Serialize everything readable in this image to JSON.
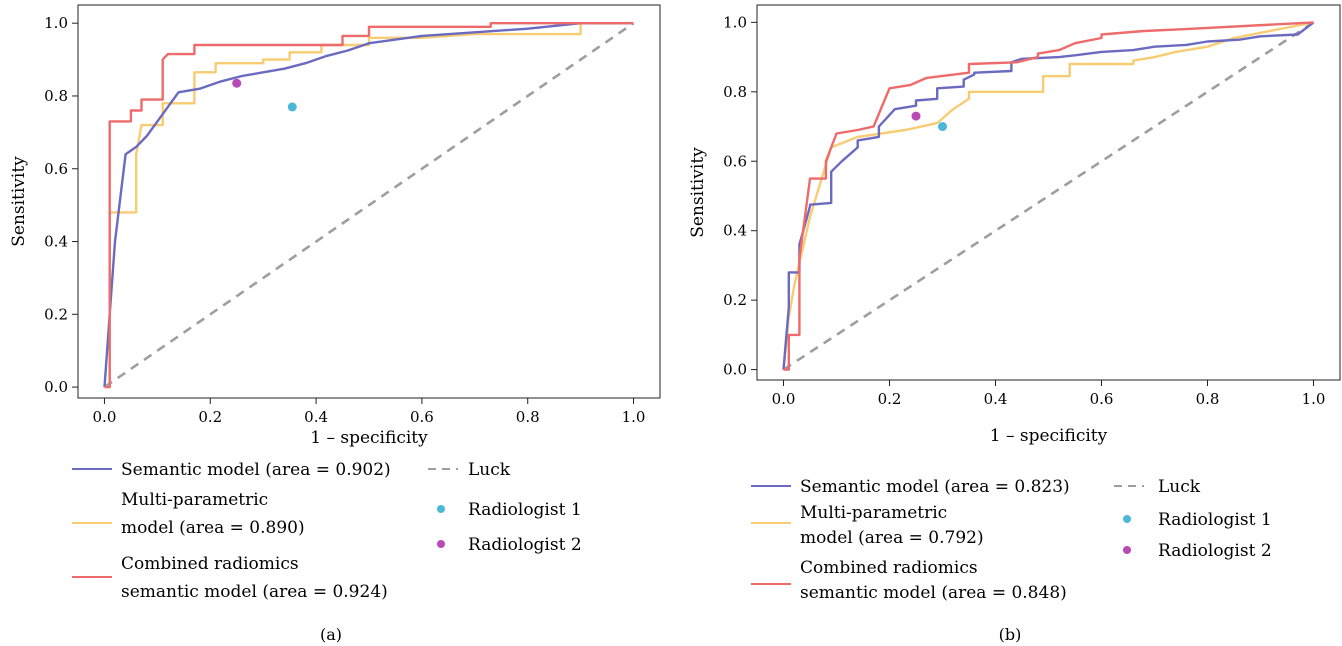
{
  "colors": {
    "semantic": "#6a6ac0",
    "multi": "#f7cc72",
    "combined": "#ee6b6b",
    "luck": "#9e9e9e",
    "radiologist1": "#4cb8d8",
    "radiologist2": "#b84ab8"
  },
  "legend": {
    "semantic": "Semantic model (area = 0.902)",
    "multi_l1": "Multi-parametric",
    "multi_l2": "model (area = 0.890)",
    "combined_l1": "Combined radiomics",
    "combined_l2": "semantic model (area = 0.924)",
    "luck": "Luck",
    "r1": "Radiologist 1",
    "r2": "Radiologist 2"
  },
  "legend_b": {
    "semantic": "Semantic model (area = 0.823)",
    "multi_l1": "Multi-parametric",
    "multi_l2": "model (area = 0.792)",
    "combined_l1": "Combined radiomics",
    "combined_l2": "semantic model (area = 0.848)",
    "luck": "Luck",
    "r1": "Radiologist 1",
    "r2": "Radiologist 2"
  },
  "chart_data": [
    {
      "type": "line",
      "caption": "(a)",
      "xlabel": "1 – specificity",
      "ylabel": "Sensitivity",
      "xlim": [
        -0.05,
        1.05
      ],
      "ylim": [
        -0.03,
        1.05
      ],
      "xticks": [
        0.0,
        0.2,
        0.4,
        0.6,
        0.8,
        1.0
      ],
      "yticks": [
        0.0,
        0.2,
        0.4,
        0.6,
        0.8,
        1.0
      ],
      "tick_labels": [
        "0.0",
        "0.2",
        "0.4",
        "0.6",
        "0.8",
        "1.0"
      ],
      "grid": false,
      "legend_position": "below",
      "series": [
        {
          "key": "semantic",
          "name": "Semantic model (area = 0.902)",
          "x": [
            0.0,
            0.01,
            0.02,
            0.04,
            0.06,
            0.08,
            0.1,
            0.12,
            0.14,
            0.18,
            0.22,
            0.26,
            0.3,
            0.34,
            0.38,
            0.42,
            0.46,
            0.5,
            0.55,
            0.6,
            0.7,
            0.8,
            0.9,
            1.0
          ],
          "y": [
            0.0,
            0.2,
            0.4,
            0.64,
            0.66,
            0.69,
            0.73,
            0.77,
            0.81,
            0.82,
            0.84,
            0.855,
            0.865,
            0.875,
            0.89,
            0.91,
            0.925,
            0.945,
            0.955,
            0.965,
            0.975,
            0.985,
            1.0,
            1.0
          ]
        },
        {
          "key": "multi",
          "name": "Multi-parametric model (area = 0.890)",
          "x": [
            0.0,
            0.01,
            0.01,
            0.06,
            0.06,
            0.07,
            0.11,
            0.11,
            0.17,
            0.17,
            0.21,
            0.21,
            0.3,
            0.3,
            0.35,
            0.35,
            0.41,
            0.41,
            0.5,
            0.5,
            0.6,
            0.7,
            0.9,
            0.9,
            1.0
          ],
          "y": [
            0.0,
            0.0,
            0.48,
            0.48,
            0.64,
            0.72,
            0.72,
            0.78,
            0.78,
            0.865,
            0.865,
            0.89,
            0.89,
            0.9,
            0.9,
            0.92,
            0.92,
            0.94,
            0.94,
            0.96,
            0.96,
            0.97,
            0.97,
            1.0,
            1.0
          ]
        },
        {
          "key": "combined",
          "name": "Combined radiomics semantic model (area = 0.924)",
          "x": [
            0.0,
            0.01,
            0.01,
            0.05,
            0.05,
            0.07,
            0.07,
            0.11,
            0.11,
            0.12,
            0.17,
            0.17,
            0.45,
            0.45,
            0.5,
            0.5,
            0.73,
            0.73,
            1.0
          ],
          "y": [
            0.0,
            0.0,
            0.73,
            0.73,
            0.76,
            0.76,
            0.79,
            0.79,
            0.9,
            0.915,
            0.915,
            0.94,
            0.94,
            0.965,
            0.965,
            0.99,
            0.99,
            1.0,
            1.0
          ]
        },
        {
          "key": "luck",
          "name": "Luck",
          "dashed": true,
          "x": [
            0.0,
            1.0
          ],
          "y": [
            0.0,
            1.0
          ]
        }
      ],
      "points": [
        {
          "key": "radiologist1",
          "name": "Radiologist 1",
          "x": 0.355,
          "y": 0.77
        },
        {
          "key": "radiologist2",
          "name": "Radiologist 2",
          "x": 0.25,
          "y": 0.835
        }
      ]
    },
    {
      "type": "line",
      "caption": "(b)",
      "xlabel": "1 – specificity",
      "ylabel": "Sensitivity",
      "xlim": [
        -0.05,
        1.05
      ],
      "ylim": [
        -0.03,
        1.05
      ],
      "xticks": [
        0.0,
        0.2,
        0.4,
        0.6,
        0.8,
        1.0
      ],
      "yticks": [
        0.0,
        0.2,
        0.4,
        0.6,
        0.8,
        1.0
      ],
      "tick_labels": [
        "0.0",
        "0.2",
        "0.4",
        "0.6",
        "0.8",
        "1.0"
      ],
      "grid": false,
      "legend_position": "below",
      "series": [
        {
          "key": "semantic",
          "name": "Semantic model (area = 0.823)",
          "x": [
            0.0,
            0.01,
            0.01,
            0.03,
            0.03,
            0.05,
            0.05,
            0.09,
            0.09,
            0.11,
            0.11,
            0.14,
            0.14,
            0.18,
            0.18,
            0.21,
            0.21,
            0.25,
            0.25,
            0.29,
            0.29,
            0.34,
            0.34,
            0.36,
            0.36,
            0.43,
            0.43,
            0.45,
            0.45,
            0.52,
            0.52,
            0.55,
            0.6,
            0.66,
            0.7,
            0.76,
            0.8,
            0.86,
            0.9,
            0.97,
            1.0
          ],
          "y": [
            0.0,
            0.18,
            0.28,
            0.28,
            0.36,
            0.47,
            0.475,
            0.48,
            0.57,
            0.6,
            0.6,
            0.64,
            0.66,
            0.67,
            0.7,
            0.75,
            0.75,
            0.76,
            0.775,
            0.78,
            0.81,
            0.815,
            0.835,
            0.85,
            0.855,
            0.86,
            0.885,
            0.895,
            0.895,
            0.9,
            0.9,
            0.905,
            0.915,
            0.92,
            0.93,
            0.935,
            0.945,
            0.95,
            0.96,
            0.965,
            1.0
          ]
        },
        {
          "key": "multi",
          "name": "Multi-parametric model (area = 0.792)",
          "x": [
            0.0,
            0.01,
            0.02,
            0.02,
            0.05,
            0.05,
            0.09,
            0.09,
            0.14,
            0.14,
            0.23,
            0.23,
            0.29,
            0.29,
            0.32,
            0.32,
            0.35,
            0.35,
            0.49,
            0.49,
            0.54,
            0.54,
            0.66,
            0.66,
            0.7,
            0.74,
            0.8,
            0.85,
            1.0
          ],
          "y": [
            0.0,
            0.15,
            0.24,
            0.24,
            0.44,
            0.44,
            0.64,
            0.64,
            0.67,
            0.67,
            0.69,
            0.69,
            0.71,
            0.71,
            0.75,
            0.75,
            0.78,
            0.8,
            0.8,
            0.845,
            0.845,
            0.88,
            0.88,
            0.89,
            0.9,
            0.915,
            0.93,
            0.955,
            1.0
          ]
        },
        {
          "key": "combined",
          "name": "Combined radiomics semantic model (area = 0.848)",
          "x": [
            0.0,
            0.01,
            0.01,
            0.03,
            0.03,
            0.05,
            0.05,
            0.08,
            0.08,
            0.1,
            0.1,
            0.14,
            0.14,
            0.17,
            0.17,
            0.2,
            0.2,
            0.24,
            0.24,
            0.27,
            0.27,
            0.35,
            0.35,
            0.44,
            0.44,
            0.48,
            0.48,
            0.52,
            0.52,
            0.55,
            0.55,
            0.6,
            0.6,
            0.68,
            0.68,
            0.75,
            1.0
          ],
          "y": [
            0.0,
            0.0,
            0.1,
            0.1,
            0.32,
            0.55,
            0.55,
            0.55,
            0.6,
            0.68,
            0.68,
            0.69,
            0.69,
            0.7,
            0.7,
            0.81,
            0.81,
            0.82,
            0.82,
            0.84,
            0.84,
            0.855,
            0.88,
            0.885,
            0.885,
            0.9,
            0.91,
            0.92,
            0.92,
            0.94,
            0.94,
            0.955,
            0.965,
            0.975,
            0.975,
            0.98,
            1.0
          ]
        },
        {
          "key": "luck",
          "name": "Luck",
          "dashed": true,
          "x": [
            0.0,
            1.0
          ],
          "y": [
            0.0,
            1.0
          ]
        }
      ],
      "points": [
        {
          "key": "radiologist1",
          "name": "Radiologist 1",
          "x": 0.3,
          "y": 0.7
        },
        {
          "key": "radiologist2",
          "name": "Radiologist 2",
          "x": 0.25,
          "y": 0.73
        }
      ]
    }
  ]
}
